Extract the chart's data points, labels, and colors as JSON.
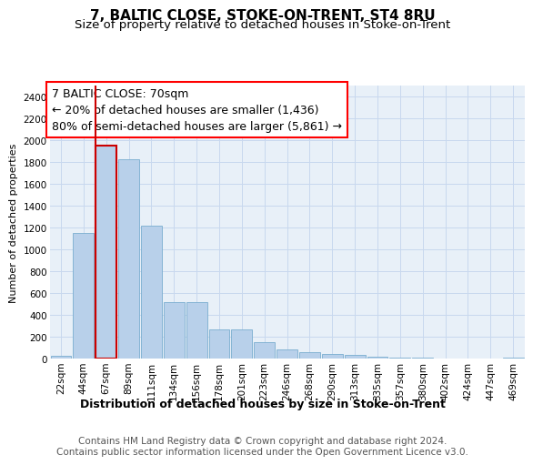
{
  "title": "7, BALTIC CLOSE, STOKE-ON-TRENT, ST4 8RU",
  "subtitle": "Size of property relative to detached houses in Stoke-on-Trent",
  "xlabel": "Distribution of detached houses by size in Stoke-on-Trent",
  "ylabel": "Number of detached properties",
  "categories": [
    "22sqm",
    "44sqm",
    "67sqm",
    "89sqm",
    "111sqm",
    "134sqm",
    "156sqm",
    "178sqm",
    "201sqm",
    "223sqm",
    "246sqm",
    "268sqm",
    "290sqm",
    "313sqm",
    "335sqm",
    "357sqm",
    "380sqm",
    "402sqm",
    "424sqm",
    "447sqm",
    "469sqm"
  ],
  "values": [
    25,
    1150,
    1950,
    1830,
    1220,
    520,
    520,
    270,
    270,
    150,
    85,
    60,
    45,
    35,
    20,
    15,
    15,
    5,
    5,
    5,
    15
  ],
  "bar_color": "#b8d0ea",
  "bar_edge_color": "#7aadcf",
  "highlight_bar_indices": [
    2
  ],
  "highlight_bar_edge_color": "#cc0000",
  "vertical_line_x": 2,
  "annotation_box_text": "7 BALTIC CLOSE: 70sqm\n← 20% of detached houses are smaller (1,436)\n80% of semi-detached houses are larger (5,861) →",
  "ylim": [
    0,
    2500
  ],
  "yticks": [
    0,
    200,
    400,
    600,
    800,
    1000,
    1200,
    1400,
    1600,
    1800,
    2000,
    2200,
    2400
  ],
  "grid_color": "#c8d8ee",
  "plot_bg_color": "#e8f0f8",
  "footer_text": "Contains HM Land Registry data © Crown copyright and database right 2024.\nContains public sector information licensed under the Open Government Licence v3.0.",
  "title_fontsize": 11,
  "subtitle_fontsize": 9.5,
  "xlabel_fontsize": 9,
  "ylabel_fontsize": 8,
  "tick_fontsize": 7.5,
  "annotation_fontsize": 9,
  "footer_fontsize": 7.5
}
